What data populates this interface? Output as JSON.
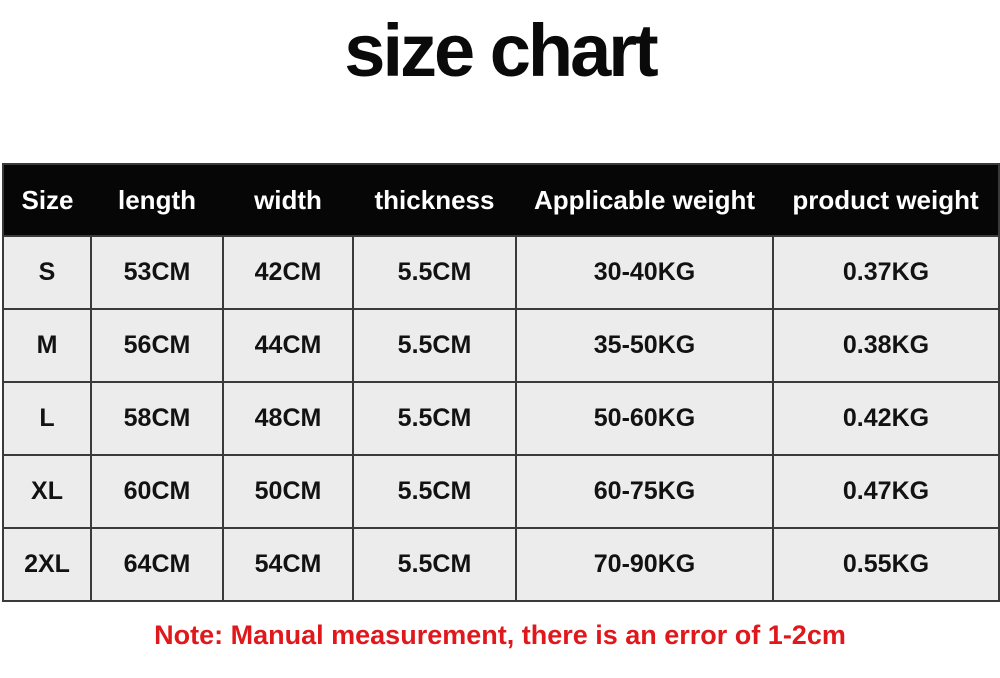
{
  "title": "size chart",
  "table": {
    "headers": [
      "Size",
      "length",
      "width",
      "thickness",
      "Applicable weight",
      "product weight"
    ],
    "rows": [
      [
        "S",
        "53CM",
        "42CM",
        "5.5CM",
        "30-40KG",
        "0.37KG"
      ],
      [
        "M",
        "56CM",
        "44CM",
        "5.5CM",
        "35-50KG",
        "0.38KG"
      ],
      [
        "L",
        "58CM",
        "48CM",
        "5.5CM",
        "50-60KG",
        "0.42KG"
      ],
      [
        "XL",
        "60CM",
        "50CM",
        "5.5CM",
        "60-75KG",
        "0.47KG"
      ],
      [
        "2XL",
        "64CM",
        "54CM",
        "5.5CM",
        "70-90KG",
        "0.55KG"
      ]
    ]
  },
  "note": {
    "text": "Note: Manual measurement, there is an error of 1-2cm"
  },
  "colors": {
    "header_background": "#060606",
    "header_text": "#ffffff",
    "cell_background": "#ececec",
    "grid_border": "#3a3a3a",
    "note_red": "#e0181c",
    "title_black": "#0a0a0a"
  },
  "chart_data": {
    "type": "table",
    "title": "size chart",
    "columns": [
      "Size",
      "length",
      "width",
      "thickness",
      "Applicable weight",
      "product weight"
    ],
    "rows": [
      [
        "S",
        "53CM",
        "42CM",
        "5.5CM",
        "30-40KG",
        "0.37KG"
      ],
      [
        "M",
        "56CM",
        "44CM",
        "5.5CM",
        "35-50KG",
        "0.38KG"
      ],
      [
        "L",
        "58CM",
        "48CM",
        "5.5CM",
        "50-60KG",
        "0.42KG"
      ],
      [
        "XL",
        "60CM",
        "50CM",
        "5.5CM",
        "60-75KG",
        "0.47KG"
      ],
      [
        "2XL",
        "64CM",
        "54CM",
        "5.5CM",
        "70-90KG",
        "0.55KG"
      ]
    ],
    "series": [
      {
        "name": "length_cm",
        "values": [
          53,
          56,
          58,
          60,
          64
        ]
      },
      {
        "name": "width_cm",
        "values": [
          42,
          44,
          48,
          50,
          54
        ]
      },
      {
        "name": "thickness_cm",
        "values": [
          5.5,
          5.5,
          5.5,
          5.5,
          5.5
        ]
      },
      {
        "name": "applicable_weight_kg_range",
        "values": [
          "30-40",
          "35-50",
          "50-60",
          "60-75",
          "70-90"
        ]
      },
      {
        "name": "product_weight_kg",
        "values": [
          0.37,
          0.38,
          0.42,
          0.47,
          0.55
        ]
      }
    ],
    "note": "Note: Manual measurement, there is an error of 1-2cm"
  }
}
